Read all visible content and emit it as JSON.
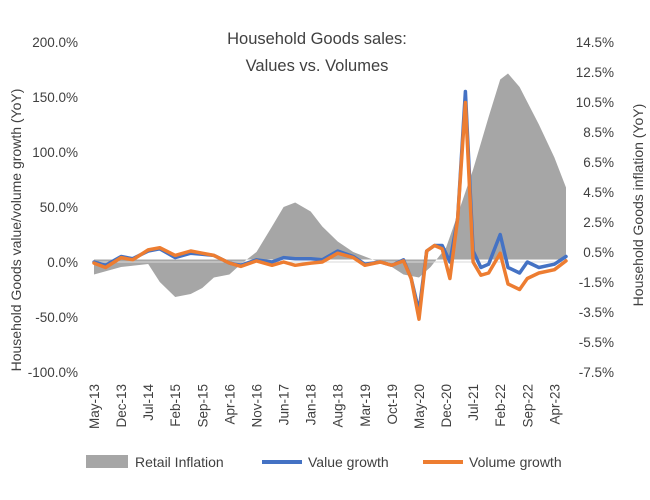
{
  "chart_data": {
    "type": "line",
    "title_lines": [
      "Household Goods sales:",
      "Values vs. Volumes"
    ],
    "ylabel_left": "Household Goods value/volume  growth (YoY)",
    "ylabel_right": "Household Goods inflation (YoY)",
    "left_ylim": [
      -100,
      200
    ],
    "right_ylim": [
      -7.5,
      14.5
    ],
    "left_ticks": [
      "-100.0%",
      "-50.0%",
      "0.0%",
      "50.0%",
      "100.0%",
      "150.0%",
      "200.0%"
    ],
    "left_tick_values": [
      -100,
      -50,
      0,
      50,
      100,
      150,
      200
    ],
    "right_ticks": [
      "-7.5%",
      "-5.5%",
      "-3.5%",
      "-1.5%",
      "0.5%",
      "2.5%",
      "4.5%",
      "6.5%",
      "8.5%",
      "10.5%",
      "12.5%",
      "14.5%"
    ],
    "right_tick_values": [
      -7.5,
      -5.5,
      -3.5,
      -1.5,
      0.5,
      2.5,
      4.5,
      6.5,
      8.5,
      10.5,
      12.5,
      14.5
    ],
    "x_labels": [
      "May-13",
      "Dec-13",
      "Jul-14",
      "Feb-15",
      "Sep-15",
      "Apr-16",
      "Nov-16",
      "Jun-17",
      "Jan-18",
      "Aug-18",
      "Mar-19",
      "Oct-19",
      "May-20",
      "Dec-20",
      "Jul-21",
      "Feb-22",
      "Sep-22",
      "Apr-23"
    ],
    "x_range": [
      "May-13",
      "Jul-23"
    ],
    "grid": false,
    "legend_position": "bottom",
    "series": [
      {
        "name": "Retail Inflation",
        "kind": "area",
        "axis": "right",
        "color": "#a6a6a6",
        "points": [
          [
            "May-13",
            -1.0
          ],
          [
            "Dec-13",
            -0.5
          ],
          [
            "Jul-14",
            -0.3
          ],
          [
            "Oct-14",
            -1.5
          ],
          [
            "Feb-15",
            -2.5
          ],
          [
            "Jun-15",
            -2.3
          ],
          [
            "Sep-15",
            -1.9
          ],
          [
            "Dec-15",
            -1.2
          ],
          [
            "Apr-16",
            -1.0
          ],
          [
            "Jul-16",
            -0.3
          ],
          [
            "Nov-16",
            0.5
          ],
          [
            "Mar-17",
            2.2
          ],
          [
            "Jun-17",
            3.5
          ],
          [
            "Sep-17",
            3.8
          ],
          [
            "Jan-18",
            3.2
          ],
          [
            "Apr-18",
            2.2
          ],
          [
            "Aug-18",
            1.2
          ],
          [
            "Dec-18",
            0.5
          ],
          [
            "Mar-19",
            0.2
          ],
          [
            "Jul-19",
            -0.2
          ],
          [
            "Oct-19",
            -0.5
          ],
          [
            "Jan-20",
            -1.0
          ],
          [
            "May-20",
            -1.2
          ],
          [
            "Aug-20",
            -0.5
          ],
          [
            "Dec-20",
            0.8
          ],
          [
            "Mar-21",
            3.0
          ],
          [
            "Jul-21",
            6.0
          ],
          [
            "Nov-21",
            9.5
          ],
          [
            "Feb-22",
            12.0
          ],
          [
            "Apr-22",
            12.4
          ],
          [
            "Jul-22",
            11.5
          ],
          [
            "Sep-22",
            10.5
          ],
          [
            "Dec-22",
            9.0
          ],
          [
            "Apr-23",
            6.8
          ],
          [
            "Jul-23",
            4.8
          ]
        ]
      },
      {
        "name": "Value growth",
        "kind": "line",
        "axis": "left",
        "color": "#4472c4",
        "points": [
          [
            "May-13",
            0
          ],
          [
            "Aug-13",
            -3
          ],
          [
            "Dec-13",
            5
          ],
          [
            "Mar-14",
            3
          ],
          [
            "Jul-14",
            10
          ],
          [
            "Oct-14",
            12
          ],
          [
            "Feb-15",
            4
          ],
          [
            "Jun-15",
            8
          ],
          [
            "Sep-15",
            7
          ],
          [
            "Dec-15",
            6
          ],
          [
            "Apr-16",
            -1
          ],
          [
            "Jul-16",
            -3
          ],
          [
            "Nov-16",
            2
          ],
          [
            "Mar-17",
            0
          ],
          [
            "Jun-17",
            4
          ],
          [
            "Sep-17",
            3
          ],
          [
            "Jan-18",
            3
          ],
          [
            "Apr-18",
            2
          ],
          [
            "Aug-18",
            10
          ],
          [
            "Dec-18",
            5
          ],
          [
            "Mar-19",
            -2
          ],
          [
            "Jul-19",
            0
          ],
          [
            "Oct-19",
            -3
          ],
          [
            "Jan-20",
            2
          ],
          [
            "Mar-20",
            -15
          ],
          [
            "May-20",
            -45
          ],
          [
            "Jul-20",
            10
          ],
          [
            "Sep-20",
            15
          ],
          [
            "Nov-20",
            15
          ],
          [
            "Jan-21",
            0
          ],
          [
            "Mar-21",
            40
          ],
          [
            "May-21",
            155
          ],
          [
            "Jul-21",
            10
          ],
          [
            "Sep-21",
            -5
          ],
          [
            "Nov-21",
            -2
          ],
          [
            "Feb-22",
            25
          ],
          [
            "Apr-22",
            -5
          ],
          [
            "Jul-22",
            -10
          ],
          [
            "Sep-22",
            0
          ],
          [
            "Dec-22",
            -5
          ],
          [
            "Apr-23",
            -2
          ],
          [
            "Jul-23",
            5
          ]
        ]
      },
      {
        "name": "Volume growth",
        "kind": "line",
        "axis": "left",
        "color": "#ed7d31",
        "points": [
          [
            "May-13",
            -1
          ],
          [
            "Aug-13",
            -5
          ],
          [
            "Dec-13",
            4
          ],
          [
            "Mar-14",
            2
          ],
          [
            "Jul-14",
            11
          ],
          [
            "Oct-14",
            13
          ],
          [
            "Feb-15",
            6
          ],
          [
            "Jun-15",
            10
          ],
          [
            "Sep-15",
            8
          ],
          [
            "Dec-15",
            6
          ],
          [
            "Apr-16",
            -1
          ],
          [
            "Jul-16",
            -4
          ],
          [
            "Nov-16",
            1
          ],
          [
            "Mar-17",
            -3
          ],
          [
            "Jun-17",
            0
          ],
          [
            "Sep-17",
            -3
          ],
          [
            "Jan-18",
            -1
          ],
          [
            "Apr-18",
            0
          ],
          [
            "Aug-18",
            8
          ],
          [
            "Dec-18",
            4
          ],
          [
            "Mar-19",
            -3
          ],
          [
            "Jul-19",
            0
          ],
          [
            "Oct-19",
            -3
          ],
          [
            "Jan-20",
            1
          ],
          [
            "Mar-20",
            -15
          ],
          [
            "May-20",
            -52
          ],
          [
            "Jul-20",
            10
          ],
          [
            "Sep-20",
            15
          ],
          [
            "Nov-20",
            12
          ],
          [
            "Jan-21",
            -15
          ],
          [
            "Mar-21",
            40
          ],
          [
            "May-21",
            145
          ],
          [
            "Jul-21",
            0
          ],
          [
            "Sep-21",
            -12
          ],
          [
            "Nov-21",
            -10
          ],
          [
            "Feb-22",
            8
          ],
          [
            "Apr-22",
            -20
          ],
          [
            "Jul-22",
            -25
          ],
          [
            "Sep-22",
            -15
          ],
          [
            "Dec-22",
            -10
          ],
          [
            "Apr-23",
            -7
          ],
          [
            "Jul-23",
            1
          ]
        ]
      }
    ]
  }
}
